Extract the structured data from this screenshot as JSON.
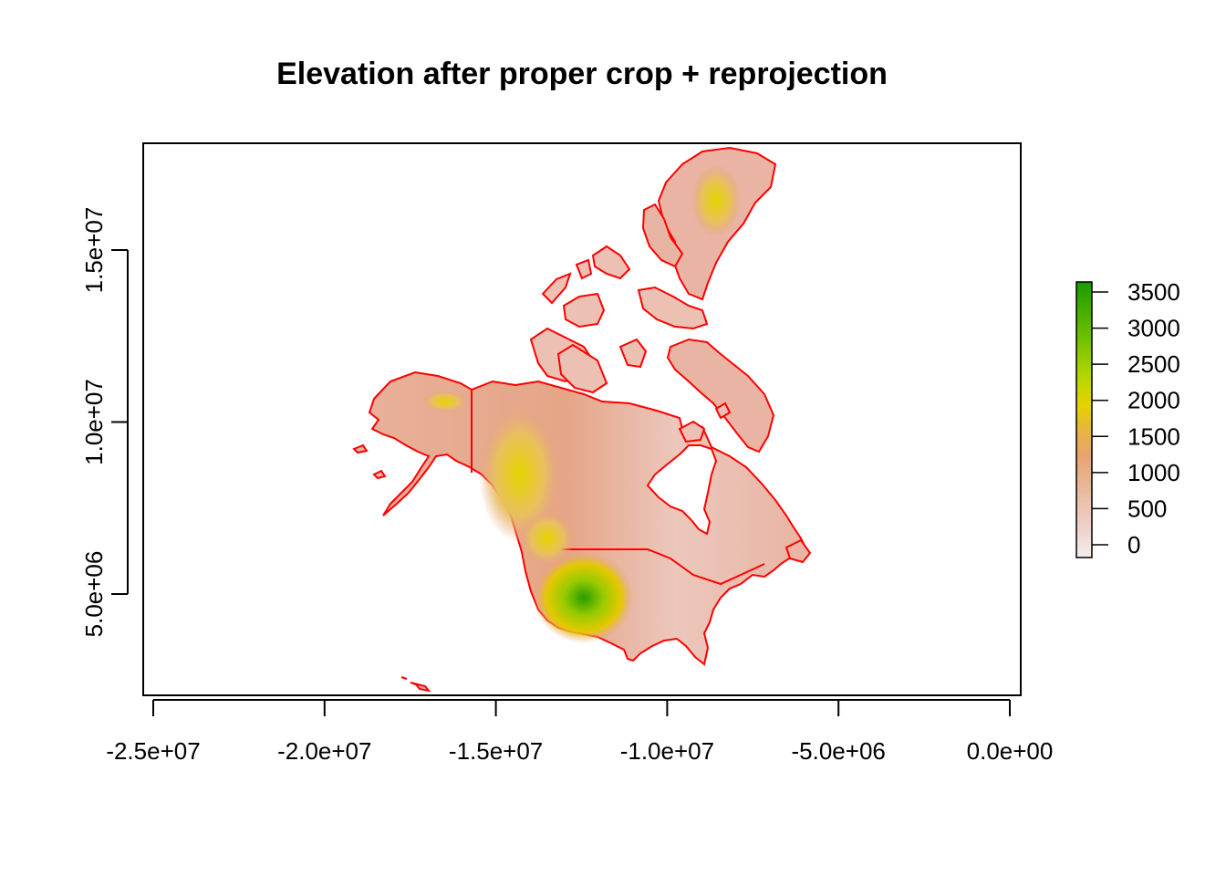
{
  "title": "Elevation after proper crop + reprojection",
  "map": {
    "x_axis": {
      "ticks": [
        -25000000,
        -20000000,
        -15000000,
        -10000000,
        -5000000,
        0
      ],
      "labels": [
        "-2.5e+07",
        "-2.0e+07",
        "-1.5e+07",
        "-1.0e+07",
        "-5.0e+06",
        "0.0e+00"
      ]
    },
    "y_axis": {
      "ticks": [
        5000000,
        10000000,
        15000000
      ],
      "labels": [
        "5.0e+06",
        "1.0e+07",
        "1.5e+07"
      ]
    },
    "colors": {
      "boundary": "#ff0000",
      "low": "#f2e6e6",
      "mid": "#e8a57a",
      "high_yellow": "#e6d400",
      "peak": "#1a9900",
      "frame": "#000000"
    }
  },
  "legend": {
    "labels": [
      "3500",
      "3000",
      "2500",
      "2000",
      "1500",
      "1000",
      "500",
      "0"
    ],
    "values": [
      3500,
      3000,
      2500,
      2000,
      1500,
      1000,
      500,
      0
    ],
    "min": -200,
    "max": 3600
  }
}
